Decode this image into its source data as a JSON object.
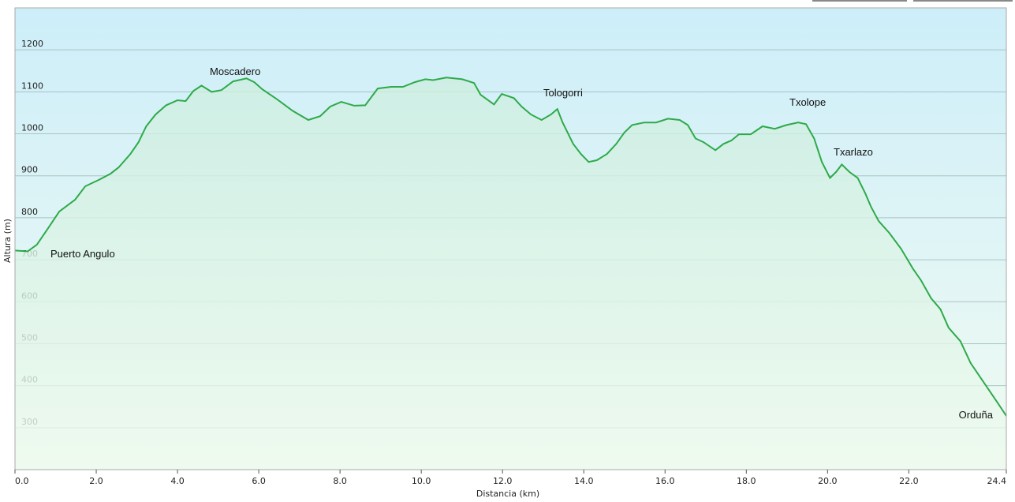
{
  "chart_data": {
    "type": "area",
    "x_label": "Distancia  (km)",
    "y_label": "Altura (m)",
    "x": [
      0,
      0.31,
      0.54,
      0.8,
      1.09,
      1.48,
      1.73,
      2.06,
      2.35,
      2.55,
      2.84,
      3.04,
      3.23,
      3.46,
      3.72,
      4.0,
      4.2,
      4.39,
      4.59,
      4.84,
      5.08,
      5.37,
      5.7,
      5.89,
      6.09,
      6.44,
      6.83,
      7.22,
      7.51,
      7.76,
      8.03,
      8.35,
      8.62,
      8.93,
      9.26,
      9.55,
      9.84,
      10.1,
      10.29,
      10.62,
      11.01,
      11.3,
      11.46,
      11.79,
      11.98,
      12.28,
      12.47,
      12.7,
      12.96,
      13.19,
      13.35,
      13.48,
      13.74,
      13.93,
      14.12,
      14.32,
      14.57,
      14.8,
      15.0,
      15.19,
      15.49,
      15.78,
      16.07,
      16.36,
      16.56,
      16.75,
      16.95,
      17.24,
      17.44,
      17.63,
      17.82,
      18.11,
      18.4,
      18.7,
      18.99,
      19.28,
      19.47,
      19.67,
      19.86,
      20.06,
      20.21,
      20.35,
      20.54,
      20.74,
      20.93,
      21.07,
      21.26,
      21.52,
      21.81,
      22.1,
      22.3,
      22.55,
      22.78,
      22.98,
      23.27,
      23.52,
      23.85,
      24.18,
      24.4
    ],
    "series": [
      {
        "color": "#2eaa4a",
        "values": [
          722,
          720,
          736,
          773,
          815,
          843,
          875,
          890,
          905,
          920,
          952,
          980,
          1018,
          1046,
          1068,
          1080,
          1078,
          1102,
          1115,
          1100,
          1104,
          1125,
          1132,
          1123,
          1106,
          1083,
          1055,
          1033,
          1042,
          1065,
          1076,
          1067,
          1068,
          1108,
          1112,
          1112,
          1123,
          1130,
          1128,
          1134,
          1130,
          1121,
          1093,
          1070,
          1095,
          1085,
          1065,
          1046,
          1033,
          1046,
          1059,
          1027,
          976,
          952,
          933,
          937,
          952,
          976,
          1003,
          1021,
          1027,
          1027,
          1036,
          1033,
          1021,
          989,
          980,
          961,
          976,
          984,
          999,
          999,
          1018,
          1012,
          1021,
          1027,
          1023,
          989,
          933,
          895,
          909,
          927,
          909,
          895,
          858,
          826,
          792,
          764,
          726,
          679,
          651,
          608,
          582,
          538,
          506,
          454,
          407,
          360,
          328
        ]
      }
    ],
    "xlim": [
      0,
      24.4
    ],
    "ylim": [
      200,
      1300
    ],
    "xticks": [
      {
        "value": 0,
        "label": "0.0"
      },
      {
        "value": 2,
        "label": "2.0"
      },
      {
        "value": 4,
        "label": "4.0"
      },
      {
        "value": 6,
        "label": "6.0"
      },
      {
        "value": 8,
        "label": "8.0"
      },
      {
        "value": 10,
        "label": "10.0"
      },
      {
        "value": 12,
        "label": "12.0"
      },
      {
        "value": 14,
        "label": "14.0"
      },
      {
        "value": 16,
        "label": "16.0"
      },
      {
        "value": 18,
        "label": "18.0"
      },
      {
        "value": 20,
        "label": "20.0"
      },
      {
        "value": 22,
        "label": "22.0"
      },
      {
        "value": 24.4,
        "label": "24.4"
      }
    ],
    "yticks": [
      300,
      400,
      500,
      600,
      700,
      800,
      900,
      1000,
      1100,
      1200
    ],
    "grid": true,
    "annotations": [
      "Puerto Angulo",
      "Moscadero",
      "Tologorri",
      "Txolope",
      "Txarlazo",
      "Orduña"
    ]
  }
}
